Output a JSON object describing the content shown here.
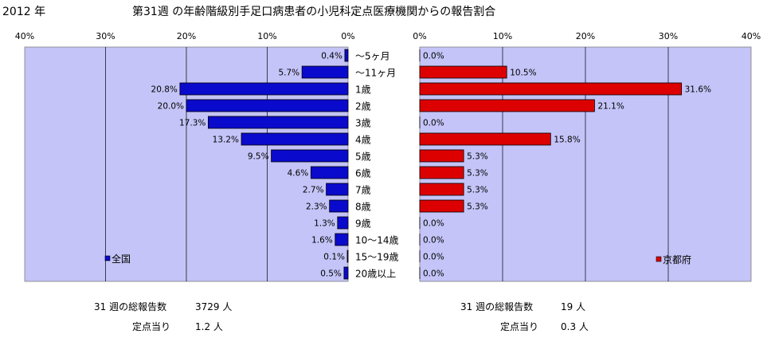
{
  "header": {
    "year": "2012 年",
    "title": "第31週 の年齢階級別手足口病患者の小児科定点医療機関からの報告割合"
  },
  "colors": {
    "plot_background": "#c4c4f8",
    "national_bar": "#0a0acc",
    "kyoto_bar": "#dd0000",
    "bar_outline": "#000000",
    "gridline": "#000000"
  },
  "age_groups": [
    "〜5ヶ月",
    "〜11ヶ月",
    "1歳",
    "2歳",
    "3歳",
    "4歳",
    "5歳",
    "6歳",
    "7歳",
    "8歳",
    "9歳",
    "10〜14歳",
    "15〜19歳",
    "20歳以上"
  ],
  "chart_data": [
    {
      "type": "bar",
      "orientation": "horizontal",
      "direction": "right-to-left",
      "categories": [
        "〜5ヶ月",
        "〜11ヶ月",
        "1歳",
        "2歳",
        "3歳",
        "4歳",
        "5歳",
        "6歳",
        "7歳",
        "8歳",
        "9歳",
        "10〜14歳",
        "15〜19歳",
        "20歳以上"
      ],
      "values": [
        0.4,
        5.7,
        20.8,
        20.0,
        17.3,
        13.2,
        9.5,
        4.6,
        2.7,
        2.3,
        1.3,
        1.6,
        0.1,
        0.5
      ],
      "data_labels": [
        "0.4%",
        "5.7%",
        "20.8%",
        "20.0%",
        "17.3%",
        "13.2%",
        "9.5%",
        "4.6%",
        "2.7%",
        "2.3%",
        "1.3%",
        "1.6%",
        "0.1%",
        "0.5%"
      ],
      "xlim": [
        0,
        40
      ],
      "xticks": [
        "40%",
        "30%",
        "20%",
        "10%",
        "0%"
      ],
      "legend": "全国",
      "legend_position": "bottom-left",
      "grid": true
    },
    {
      "type": "bar",
      "orientation": "horizontal",
      "direction": "left-to-right",
      "categories": [
        "〜5ヶ月",
        "〜11ヶ月",
        "1歳",
        "2歳",
        "3歳",
        "4歳",
        "5歳",
        "6歳",
        "7歳",
        "8歳",
        "9歳",
        "10〜14歳",
        "15〜19歳",
        "20歳以上"
      ],
      "values": [
        0.0,
        10.5,
        31.6,
        21.1,
        0.0,
        15.8,
        5.3,
        5.3,
        5.3,
        5.3,
        0.0,
        0.0,
        0.0,
        0.0
      ],
      "data_labels": [
        "0.0%",
        "10.5%",
        "31.6%",
        "21.1%",
        "0.0%",
        "15.8%",
        "5.3%",
        "5.3%",
        "5.3%",
        "5.3%",
        "0.0%",
        "0.0%",
        "0.0%",
        "0.0%"
      ],
      "xlim": [
        0,
        40
      ],
      "xticks": [
        "0%",
        "10%",
        "20%",
        "30%",
        "40%"
      ],
      "legend": "京都府",
      "legend_position": "bottom-right",
      "grid": true
    }
  ],
  "footer": {
    "national": {
      "total_label": "31 週の総報告数",
      "total_value": "3729 人",
      "per_point_label": "定点当り",
      "per_point_value": "1.2 人"
    },
    "kyoto": {
      "total_label": "31 週の総報告数",
      "total_value": "19 人",
      "per_point_label": "定点当り",
      "per_point_value": "0.3 人"
    }
  }
}
